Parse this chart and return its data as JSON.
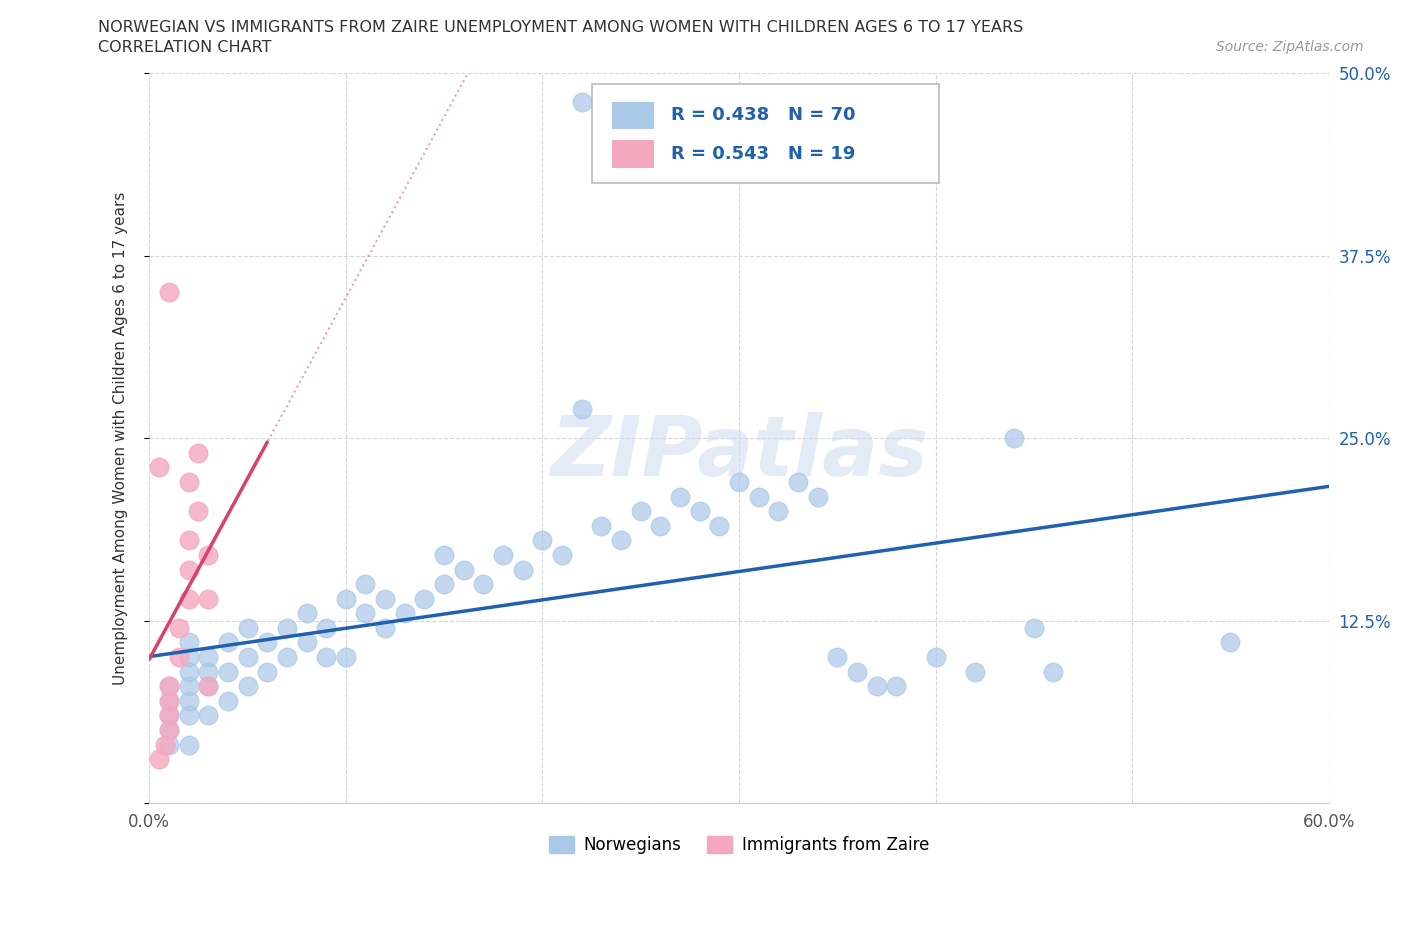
{
  "title_line1": "NORWEGIAN VS IMMIGRANTS FROM ZAIRE UNEMPLOYMENT AMONG WOMEN WITH CHILDREN AGES 6 TO 17 YEARS",
  "title_line2": "CORRELATION CHART",
  "source_text": "Source: ZipAtlas.com",
  "ylabel": "Unemployment Among Women with Children Ages 6 to 17 years",
  "xlim": [
    0.0,
    0.6
  ],
  "ylim": [
    0.0,
    0.5
  ],
  "xticks": [
    0.0,
    0.1,
    0.2,
    0.3,
    0.4,
    0.5,
    0.6
  ],
  "yticks": [
    0.0,
    0.125,
    0.25,
    0.375,
    0.5
  ],
  "xticklabels": [
    "0.0%",
    "",
    "",
    "",
    "",
    "",
    "60.0%"
  ],
  "yticklabels": [
    "",
    "12.5%",
    "25.0%",
    "37.5%",
    "50.0%"
  ],
  "norwegian_R": 0.438,
  "norwegian_N": 70,
  "zaire_R": 0.543,
  "zaire_N": 19,
  "norwegian_color": "#aac8e8",
  "zaire_color": "#f4a8c0",
  "norwegian_line_color": "#2060b0",
  "zaire_line_color": "#d84070",
  "legend_text_color": "#2060b0",
  "watermark": "ZIPatlas",
  "nor_x": [
    0.01,
    0.01,
    0.01,
    0.01,
    0.01,
    0.02,
    0.02,
    0.02,
    0.02,
    0.02,
    0.02,
    0.02,
    0.03,
    0.03,
    0.03,
    0.03,
    0.04,
    0.04,
    0.04,
    0.05,
    0.05,
    0.05,
    0.06,
    0.06,
    0.07,
    0.07,
    0.08,
    0.08,
    0.09,
    0.09,
    0.1,
    0.1,
    0.11,
    0.11,
    0.12,
    0.12,
    0.13,
    0.14,
    0.15,
    0.15,
    0.16,
    0.17,
    0.18,
    0.19,
    0.2,
    0.21,
    0.22,
    0.23,
    0.24,
    0.25,
    0.26,
    0.27,
    0.28,
    0.29,
    0.3,
    0.31,
    0.32,
    0.33,
    0.34,
    0.35,
    0.36,
    0.37,
    0.38,
    0.4,
    0.42,
    0.44,
    0.45,
    0.46,
    0.55,
    0.22
  ],
  "nor_y": [
    0.04,
    0.05,
    0.06,
    0.07,
    0.08,
    0.04,
    0.06,
    0.07,
    0.08,
    0.09,
    0.1,
    0.11,
    0.06,
    0.08,
    0.09,
    0.1,
    0.07,
    0.09,
    0.11,
    0.08,
    0.1,
    0.12,
    0.09,
    0.11,
    0.1,
    0.12,
    0.11,
    0.13,
    0.1,
    0.12,
    0.1,
    0.14,
    0.13,
    0.15,
    0.12,
    0.14,
    0.13,
    0.14,
    0.15,
    0.17,
    0.16,
    0.15,
    0.17,
    0.16,
    0.18,
    0.17,
    0.27,
    0.19,
    0.18,
    0.2,
    0.19,
    0.21,
    0.2,
    0.19,
    0.22,
    0.21,
    0.2,
    0.22,
    0.21,
    0.1,
    0.09,
    0.08,
    0.08,
    0.1,
    0.09,
    0.25,
    0.12,
    0.09,
    0.11,
    0.48
  ],
  "zaire_x": [
    0.005,
    0.008,
    0.01,
    0.01,
    0.01,
    0.01,
    0.01,
    0.015,
    0.015,
    0.02,
    0.02,
    0.02,
    0.02,
    0.025,
    0.025,
    0.03,
    0.03,
    0.03,
    0.005
  ],
  "zaire_y": [
    0.03,
    0.04,
    0.05,
    0.06,
    0.07,
    0.08,
    0.35,
    0.1,
    0.12,
    0.14,
    0.16,
    0.18,
    0.22,
    0.2,
    0.24,
    0.14,
    0.17,
    0.08,
    0.23
  ],
  "nor_line_x0": 0.0,
  "nor_line_x1": 0.6,
  "zaire_line_x0": 0.0,
  "zaire_line_x1": 0.06
}
